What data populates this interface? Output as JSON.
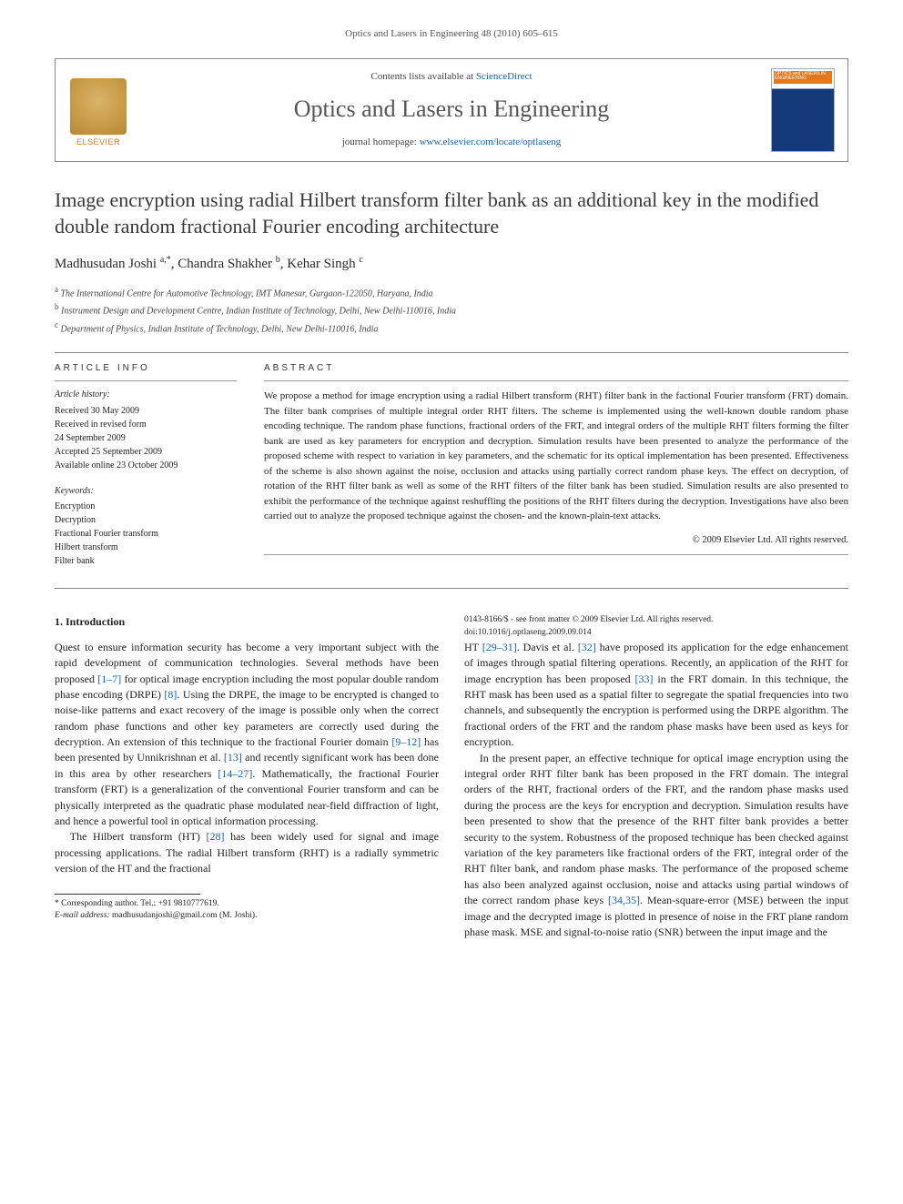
{
  "running_head": "Optics and Lasers in Engineering 48 (2010) 605–615",
  "header": {
    "elsevier_word": "ELSEVIER",
    "contents_prefix": "Contents lists available at ",
    "contents_link": "ScienceDirect",
    "journal_name": "Optics and Lasers in Engineering",
    "homepage_prefix": "journal homepage: ",
    "homepage_link": "www.elsevier.com/locate/optlaseng",
    "cover_text": "OPTICS and LASERS IN ENGINEERING"
  },
  "title": "Image encryption using radial Hilbert transform filter bank as an additional key in the modified double random fractional Fourier encoding architecture",
  "authors": "Madhusudan Joshi <sup>a,*</sup>, Chandra Shakher <sup>b</sup>, Kehar Singh <sup>c</sup>",
  "affiliations": [
    "<sup>a</sup> The International Centre for Automotive Technology, IMT Manesar, Gurgaon-122050, Haryana, India",
    "<sup>b</sup> Instrument Design and Development Centre, Indian Institute of Technology, Delhi, New Delhi-110016, India",
    "<sup>c</sup> Department of Physics, Indian Institute of Technology, Delhi, New Delhi-110016, India"
  ],
  "info_head": "ARTICLE INFO",
  "abstract_head": "ABSTRACT",
  "history_label": "Article history:",
  "history": [
    "Received 30 May 2009",
    "Received in revised form",
    "24 September 2009",
    "Accepted 25 September 2009",
    "Available online 23 October 2009"
  ],
  "keywords_label": "Keywords:",
  "keywords": [
    "Encryption",
    "Decryption",
    "Fractional Fourier transform",
    "Hilbert transform",
    "Filter bank"
  ],
  "abstract": "We propose a method for image encryption using a radial Hilbert transform (RHT) filter bank in the factional Fourier transform (FRT) domain. The filter bank comprises of multiple integral order RHT filters. The scheme is implemented using the well-known double random phase encoding technique. The random phase functions, fractional orders of the FRT, and integral orders of the multiple RHT filters forming the filter bank are used as key parameters for encryption and decryption. Simulation results have been presented to analyze the performance of the proposed scheme with respect to variation in key parameters, and the schematic for its optical implementation has been presented. Effectiveness of the scheme is also shown against the noise, occlusion and attacks using partially correct random phase keys. The effect on decryption, of rotation of the RHT filter bank as well as some of the RHT filters of the filter bank has been studied. Simulation results are also presented to exhibit the performance of the technique against reshuffling the positions of the RHT filters during the decryption. Investigations have also been carried out to analyze the proposed technique against the chosen- and the known-plain-text attacks.",
  "copyright": "© 2009 Elsevier Ltd. All rights reserved.",
  "section1_head": "1. Introduction",
  "para1": "Quest to ensure information security has become a very important subject with the rapid development of communication technologies. Several methods have been proposed <span class='cite'>[1–7]</span> for optical image encryption including the most popular double random phase encoding (DRPE) <span class='cite'>[8]</span>. Using the DRPE, the image to be encrypted is changed to noise-like patterns and exact recovery of the image is possible only when the correct random phase functions and other key parameters are correctly used during the decryption. An extension of this technique to the fractional Fourier domain <span class='cite'>[9–12]</span> has been presented by Unnikrishnan et al. <span class='cite'>[13]</span> and recently significant work has been done in this area by other researchers <span class='cite'>[14–27]</span>. Mathematically, the fractional Fourier transform (FRT) is a generalization of the conventional Fourier transform and can be physically interpreted as the quadratic phase modulated near-field diffraction of light, and hence a powerful tool in optical information processing.",
  "para2": "The Hilbert transform (HT) <span class='cite'>[28]</span> has been widely used for signal and image processing applications. The radial Hilbert transform (RHT) is a radially symmetric version of the HT and the fractional",
  "para3": "HT <span class='cite'>[29–31]</span>. Davis et al. <span class='cite'>[32]</span> have proposed its application for the edge enhancement of images through spatial filtering operations. Recently, an application of the RHT for image encryption has been proposed <span class='cite'>[33]</span> in the FRT domain. In this technique, the RHT mask has been used as a spatial filter to segregate the spatial frequencies into two channels, and subsequently the encryption is performed using the DRPE algorithm. The fractional orders of the FRT and the random phase masks have been used as keys for encryption.",
  "para4": "In the present paper, an effective technique for optical image encryption using the integral order RHT filter bank has been proposed in the FRT domain. The integral orders of the RHT, fractional orders of the FRT, and the random phase masks used during the process are the keys for encryption and decryption. Simulation results have been presented to show that the presence of the RHT filter bank provides a better security to the system. Robustness of the proposed technique has been checked against variation of the key parameters like fractional orders of the FRT, integral order of the RHT filter bank, and random phase masks. The performance of the proposed scheme has also been analyzed against occlusion, noise and attacks using partial windows of the correct random phase keys <span class='cite'>[34,35]</span>. Mean-square-error (MSE) between the input image and the decrypted image is plotted in presence of noise in the FRT plane random phase mask. MSE and signal-to-noise ratio (SNR) between the input image and the",
  "footnote": {
    "corr": "* Corresponding author. Tel.: +91 9810777619.",
    "email_label": "E-mail address:",
    "email": "madhusudanjoshi@gmail.com (M. Joshi)."
  },
  "footer": {
    "line1": "0143-8166/$ - see front matter © 2009 Elsevier Ltd. All rights reserved.",
    "line2": "doi:10.1016/j.optlaseng.2009.09.014"
  },
  "colors": {
    "link": "#1b5faa",
    "elsevier_orange": "#e67817",
    "text": "#2a2a2a",
    "cover_blue": "#153a7a"
  }
}
